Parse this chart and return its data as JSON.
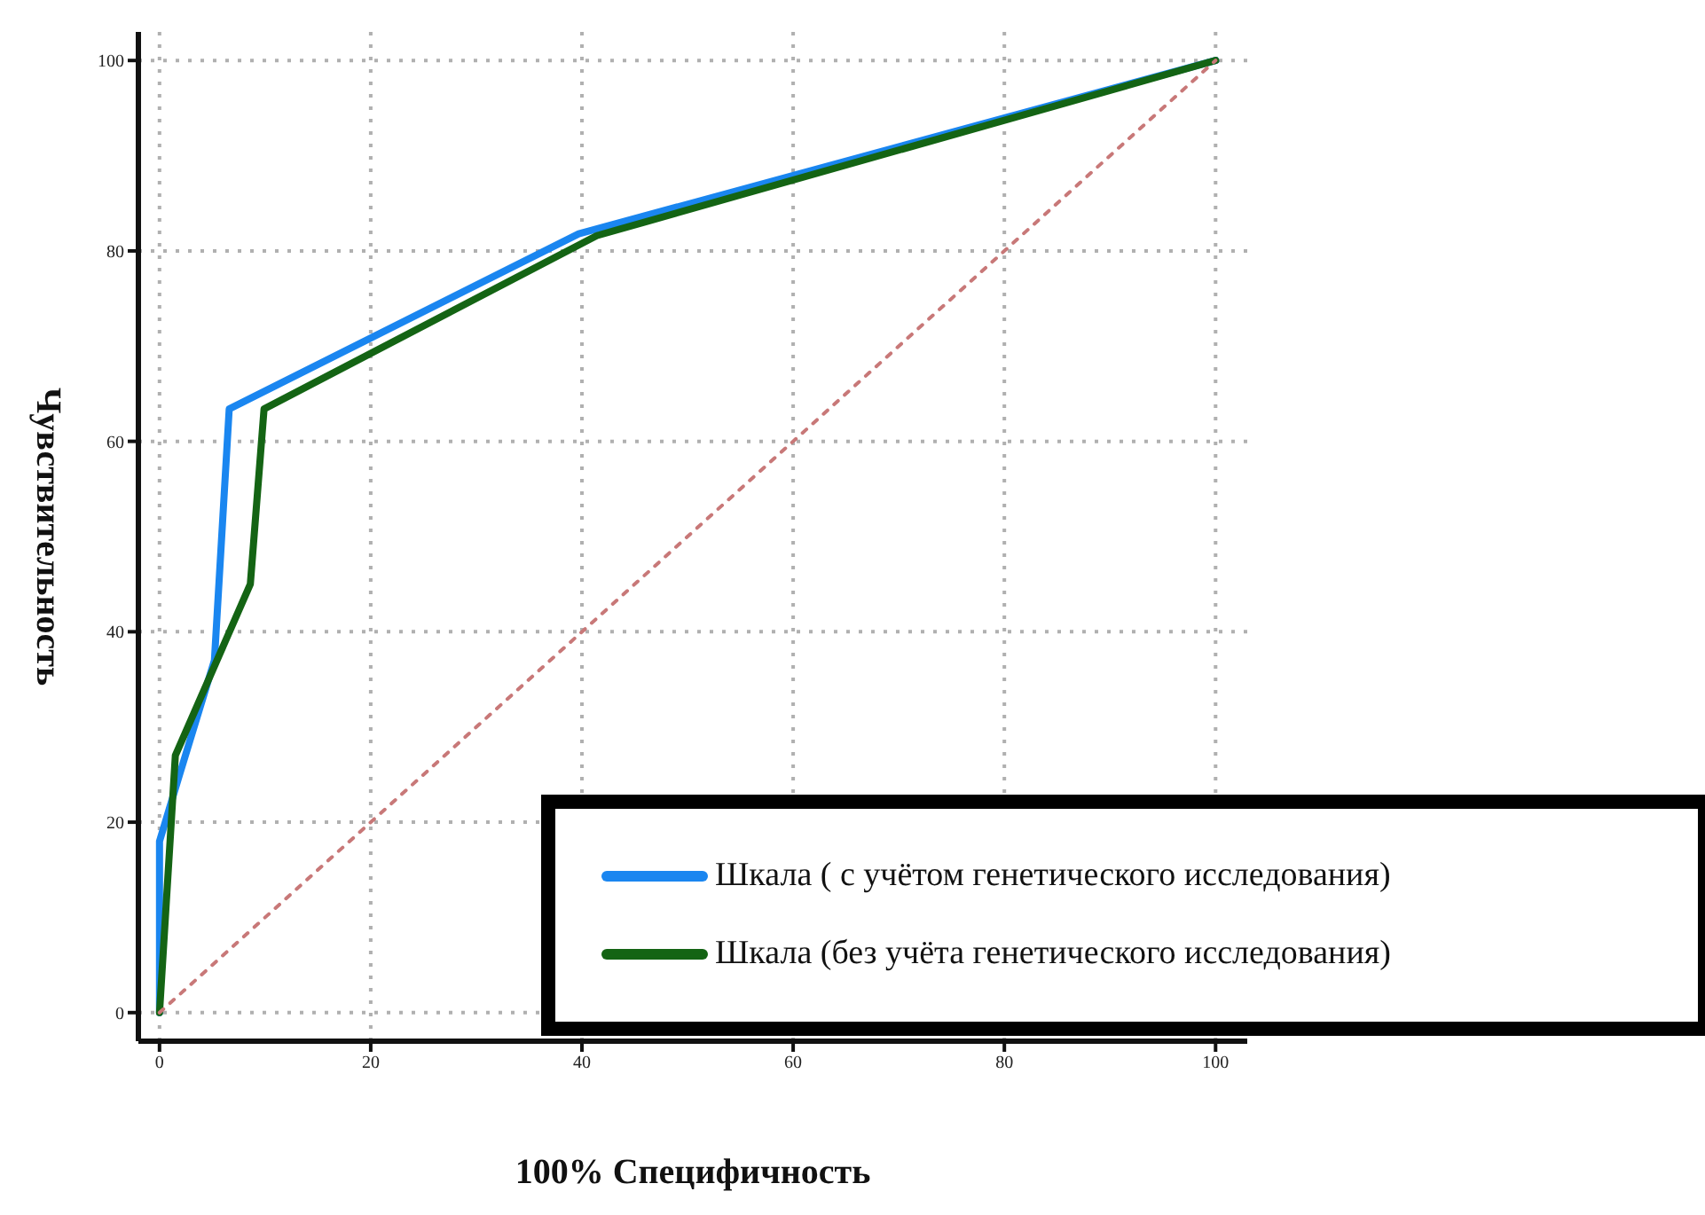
{
  "chart_data": {
    "type": "line",
    "xlabel": "100% Специфичность",
    "ylabel": "Чувствительность",
    "xlim": [
      -2,
      103
    ],
    "ylim": [
      -3,
      103
    ],
    "xticks": [
      0,
      20,
      40,
      60,
      80,
      100
    ],
    "yticks": [
      0,
      20,
      40,
      60,
      80,
      100
    ],
    "grid": true,
    "legend": "bottom right",
    "marker": "none",
    "series": [
      {
        "name": "Шкала ( с учётом генетического исследования)",
        "color": "#1a86f0",
        "x": [
          0,
          0,
          1.9,
          5.2,
          6.6,
          39.7,
          100
        ],
        "values": [
          0,
          18,
          25,
          37,
          63.4,
          81.8,
          100
        ]
      },
      {
        "name": "Шкала (без учёта генетического исследования)",
        "color": "#146414",
        "x": [
          0,
          1.5,
          8.6,
          9.9,
          41.4,
          100
        ],
        "values": [
          0,
          27,
          45,
          63.4,
          81.6,
          100
        ]
      },
      {
        "color": "#c87878",
        "line_style": "dotted",
        "x": [
          0,
          100
        ],
        "values": [
          0,
          100
        ]
      }
    ]
  }
}
